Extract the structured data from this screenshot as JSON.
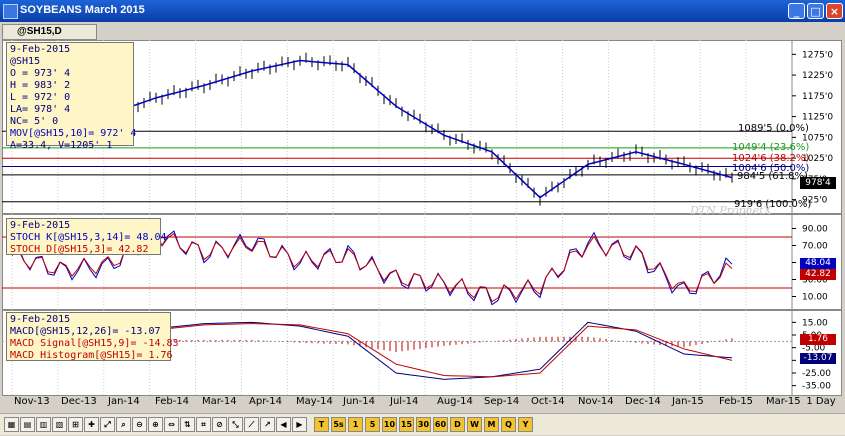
{
  "window": {
    "title": "SOYBEANS March 2015",
    "symbol_tab": "@SH15,D"
  },
  "price_panel": {
    "info": [
      "9-Feb-2015",
      "@SH15",
      "O = 973' 4",
      "H = 983' 2",
      "L = 972' 0",
      "LA= 978' 4",
      "NC= 5' 0",
      "MOV[@SH15,10]= 972' 4",
      "A=33.4, V=1205' 1"
    ],
    "y_ticks": [
      "1275'0",
      "1225'0",
      "1175'0",
      "1125'0",
      "1075'0",
      "1025'0",
      "975'0",
      "925'0"
    ],
    "last_price": "978'4",
    "fib_labels": [
      "1089'5 (0.0%)",
      "1049'4 (23.6%)",
      "1024'6 (38.2%)",
      "1004'6 (50.0%)",
      "984'5 (61.8%)",
      "919'6 (100.0%)"
    ],
    "watermark": "DTN ProphetX"
  },
  "stoch_panel": {
    "info": [
      "9-Feb-2015",
      "STOCH K[@SH15,3,14]= 48.04",
      "STOCH D[@SH15,3]= 42.82"
    ],
    "y_ticks": [
      "90.00",
      "70.00",
      "50.00",
      "30.00",
      "10.00"
    ],
    "k_value": "48.04",
    "d_value": "42.82"
  },
  "macd_panel": {
    "info": [
      "9-Feb-2015",
      "MACD[@SH15,12,26]= -13.07",
      "MACD Signal[@SH15,9]= -14.83",
      "MACD Histogram[@SH15]= 1.76"
    ],
    "y_ticks": [
      "15.00",
      "5.00",
      "-5.00",
      "-15.00",
      "-25.00",
      "-35.00"
    ],
    "hist_value": "1.76",
    "macd_value": "-13.07"
  },
  "x_axis": {
    "labels": [
      "Nov-13",
      "Dec-13",
      "Jan-14",
      "Feb-14",
      "Mar-14",
      "Apr-14",
      "May-14",
      "Jun-14",
      "Jul-14",
      "Aug-14",
      "Sep-14",
      "Oct-14",
      "Nov-14",
      "Dec-14",
      "Jan-15",
      "Feb-15",
      "Mar-15"
    ],
    "interval": "1 Day"
  },
  "toolbar": {
    "buttons": [
      "T",
      "5s",
      "1",
      "5",
      "10",
      "15",
      "30",
      "60",
      "D",
      "W",
      "M",
      "Q",
      "Y"
    ]
  },
  "chart_data": {
    "type": "line",
    "x": [
      "Nov-13",
      "Dec-13",
      "Jan-14",
      "Feb-14",
      "Mar-14",
      "Apr-14",
      "May-14",
      "Jun-14",
      "Jul-14",
      "Aug-14",
      "Sep-14",
      "Oct-14",
      "Nov-14",
      "Dec-14",
      "Jan-15",
      "Feb-15"
    ],
    "price": [
      1165,
      1150,
      1130,
      1170,
      1200,
      1235,
      1260,
      1250,
      1150,
      1080,
      1040,
      930,
      1010,
      1040,
      1010,
      978
    ],
    "price_ylim": [
      900,
      1295
    ],
    "stoch_k": [
      60,
      40,
      45,
      85,
      60,
      75,
      50,
      60,
      30,
      25,
      10,
      20,
      75,
      60,
      15,
      48
    ],
    "stoch_d": [
      58,
      42,
      48,
      82,
      62,
      72,
      52,
      58,
      32,
      26,
      12,
      22,
      72,
      62,
      18,
      43
    ],
    "stoch_ylim": [
      0,
      100
    ],
    "macd": [
      8,
      3,
      2,
      10,
      14,
      15,
      12,
      4,
      -25,
      -30,
      -28,
      -22,
      15,
      8,
      -10,
      -13
    ],
    "macd_signal": [
      7,
      4,
      3,
      9,
      13,
      14,
      13,
      6,
      -18,
      -27,
      -28,
      -25,
      12,
      9,
      -6,
      -15
    ],
    "macd_ylim": [
      -40,
      20
    ],
    "fib_levels": [
      1089.625,
      1049.5,
      1024.75,
      1004.75,
      984.625,
      919.75
    ]
  }
}
